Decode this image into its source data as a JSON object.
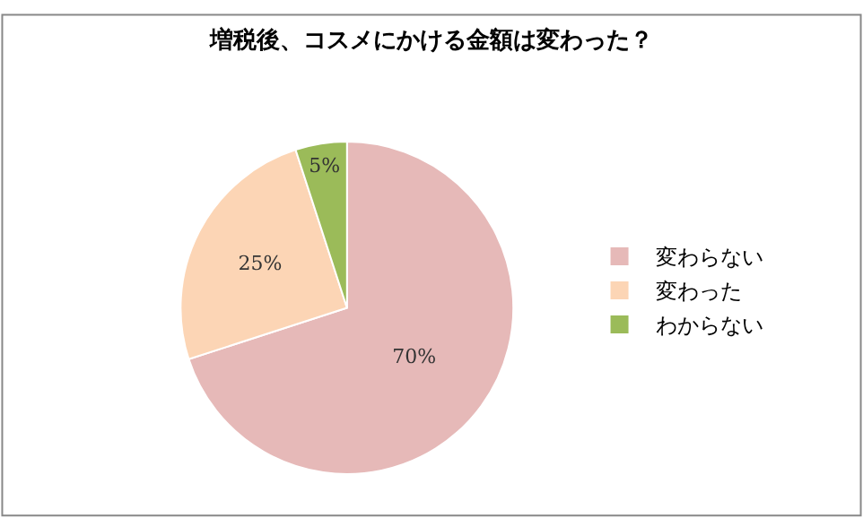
{
  "chart_data": {
    "type": "pie",
    "title": "増税後、コスメにかける金額は変わった？",
    "categories": [
      "変わらない",
      "変わった",
      "わからない"
    ],
    "values": [
      70,
      25,
      5
    ],
    "colors": [
      "#e6b9b8",
      "#fcd5b5",
      "#9bbb59"
    ],
    "value_labels": [
      "70%",
      "25%",
      "5%"
    ],
    "legend": "right"
  }
}
